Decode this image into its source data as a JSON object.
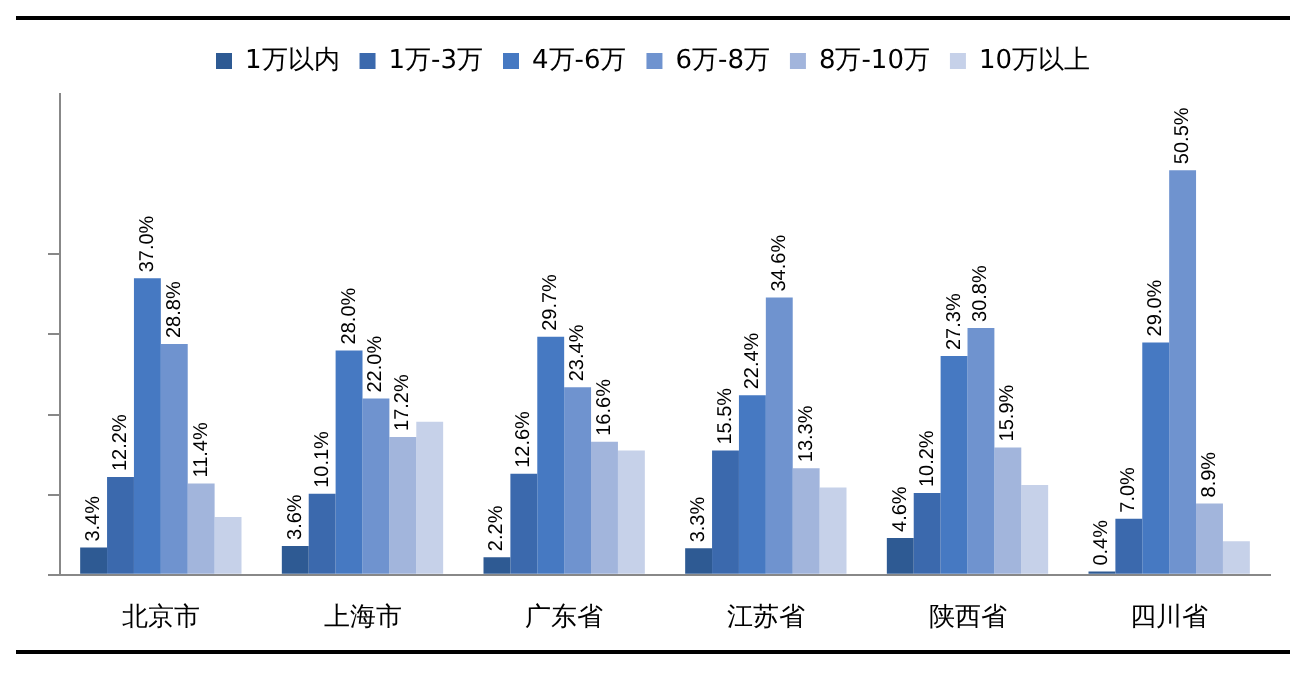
{
  "chart_data": {
    "type": "bar",
    "categories": [
      "北京市",
      "上海市",
      "广东省",
      "江苏省",
      "陕西省",
      "四川省"
    ],
    "series": [
      {
        "name": "1万以内",
        "color": "#2e5a93",
        "values": [
          3.4,
          3.6,
          2.2,
          3.3,
          4.6,
          0.4
        ],
        "value_labels": [
          "3.4%",
          "3.6%",
          "2.2%",
          "3.3%",
          "4.6%",
          "0.4%"
        ]
      },
      {
        "name": "1万-3万",
        "color": "#3b69ad",
        "values": [
          12.2,
          10.1,
          12.6,
          15.5,
          10.2,
          7.0
        ],
        "value_labels": [
          "12.2%",
          "10.1%",
          "12.6%",
          "15.5%",
          "10.2%",
          "7.0%"
        ]
      },
      {
        "name": "4万-6万",
        "color": "#4679c2",
        "values": [
          37.0,
          28.0,
          29.7,
          22.4,
          27.3,
          29.0
        ],
        "value_labels": [
          "37.0%",
          "28.0%",
          "29.7%",
          "22.4%",
          "27.3%",
          "29.0%"
        ]
      },
      {
        "name": "6万-8万",
        "color": "#6f93cf",
        "values": [
          28.8,
          22.0,
          23.4,
          34.6,
          30.8,
          50.5
        ],
        "value_labels": [
          "28.8%",
          "22.0%",
          "23.4%",
          "34.6%",
          "30.8%",
          "50.5%"
        ]
      },
      {
        "name": "8万-10万",
        "color": "#a2b5dc",
        "values": [
          11.4,
          17.2,
          16.6,
          13.3,
          15.9,
          8.9
        ],
        "value_labels": [
          "11.4%",
          "17.2%",
          "16.6%",
          "13.3%",
          "15.9%",
          "8.9%"
        ]
      },
      {
        "name": "10万以上",
        "color": "#c6d1e9",
        "values": [
          7.2,
          19.1,
          15.5,
          10.9,
          11.2,
          4.2
        ],
        "value_labels": [
          null,
          null,
          null,
          null,
          null,
          null
        ]
      }
    ],
    "ylim": [
      0,
      60
    ],
    "yticks": [
      {
        "value": 0,
        "label": null
      },
      {
        "value": 10,
        "label": null
      },
      {
        "value": 20,
        "label": null
      },
      {
        "value": 30,
        "label": null
      },
      {
        "value": 40,
        "label": null
      }
    ],
    "tick_labels": "x",
    "grid": false,
    "legend": "top"
  }
}
